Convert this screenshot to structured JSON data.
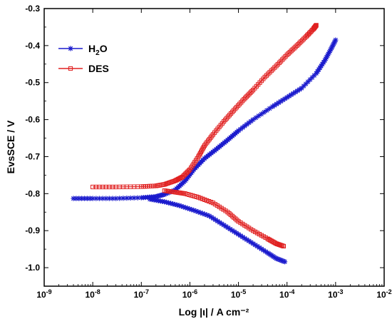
{
  "chart_data": {
    "type": "line",
    "xlabel": "Log |ι| / A cm⁻²",
    "ylabel": "EvsSCE / V",
    "x_scale": "log",
    "xlim": [
      1e-09,
      0.01
    ],
    "ylim": [
      -1.05,
      -0.3
    ],
    "x_ticks": [
      {
        "value": 1e-09,
        "base": "10",
        "exp": "-9"
      },
      {
        "value": 1e-08,
        "base": "10",
        "exp": "-8"
      },
      {
        "value": 1e-07,
        "base": "10",
        "exp": "-7"
      },
      {
        "value": 1e-06,
        "base": "10",
        "exp": "-6"
      },
      {
        "value": 1e-05,
        "base": "10",
        "exp": "-5"
      },
      {
        "value": 0.0001,
        "base": "10",
        "exp": "-4"
      },
      {
        "value": 0.001,
        "base": "10",
        "exp": "-3"
      },
      {
        "value": 0.01,
        "base": "10",
        "exp": "-2"
      }
    ],
    "y_ticks": [
      {
        "value": -0.3,
        "label": "-0.3"
      },
      {
        "value": -0.4,
        "label": "-0.4"
      },
      {
        "value": -0.5,
        "label": "-0.5"
      },
      {
        "value": -0.6,
        "label": "-0.6"
      },
      {
        "value": -0.7,
        "label": "-0.7"
      },
      {
        "value": -0.8,
        "label": "-0.8"
      },
      {
        "value": -0.9,
        "label": "-0.9"
      },
      {
        "value": -1.0,
        "label": "-1.0"
      }
    ],
    "legend": {
      "position": "top-left",
      "entries": [
        {
          "label_main": "H",
          "label_sub": "2",
          "label_tail": "O",
          "series": "H2O"
        },
        {
          "label_main": "DES",
          "label_sub": "",
          "label_tail": "",
          "series": "DES"
        }
      ]
    },
    "series": [
      {
        "name": "H2O",
        "color": "#1a1acd",
        "marker": "star",
        "branches": [
          {
            "points": [
              [
                4e-09,
                -0.813
              ],
              [
                1e-08,
                -0.813
              ],
              [
                3e-08,
                -0.813
              ],
              [
                1e-07,
                -0.811
              ],
              [
                2e-07,
                -0.808
              ],
              [
                3e-07,
                -0.802
              ],
              [
                5e-07,
                -0.79
              ],
              [
                8e-07,
                -0.765
              ],
              [
                1.2e-06,
                -0.735
              ],
              [
                2e-06,
                -0.705
              ],
              [
                3.5e-06,
                -0.68
              ],
              [
                6e-06,
                -0.655
              ],
              [
                1e-05,
                -0.63
              ],
              [
                2e-05,
                -0.6
              ],
              [
                5e-05,
                -0.565
              ],
              [
                0.0001,
                -0.54
              ],
              [
                0.0002,
                -0.515
              ],
              [
                0.0004,
                -0.475
              ],
              [
                0.0006,
                -0.44
              ],
              [
                0.0008,
                -0.41
              ],
              [
                0.001,
                -0.385
              ]
            ]
          },
          {
            "points": [
              [
                1.5e-07,
                -0.815
              ],
              [
                3e-07,
                -0.822
              ],
              [
                6e-07,
                -0.832
              ],
              [
                1.2e-06,
                -0.845
              ],
              [
                2.5e-06,
                -0.86
              ],
              [
                5e-06,
                -0.885
              ],
              [
                1e-05,
                -0.91
              ],
              [
                2e-05,
                -0.935
              ],
              [
                4e-05,
                -0.96
              ],
              [
                6e-05,
                -0.975
              ],
              [
                9e-05,
                -0.984
              ]
            ]
          }
        ]
      },
      {
        "name": "DES",
        "color": "#e02020",
        "marker": "square",
        "branches": [
          {
            "points": [
              [
                1e-08,
                -0.782
              ],
              [
                3e-08,
                -0.782
              ],
              [
                1e-07,
                -0.781
              ],
              [
                2e-07,
                -0.779
              ],
              [
                3e-07,
                -0.775
              ],
              [
                5e-07,
                -0.765
              ],
              [
                7e-07,
                -0.755
              ],
              [
                1e-06,
                -0.735
              ],
              [
                1.5e-06,
                -0.7
              ],
              [
                2e-06,
                -0.67
              ],
              [
                3e-06,
                -0.64
              ],
              [
                5e-06,
                -0.605
              ],
              [
                8e-06,
                -0.575
              ],
              [
                1.3e-05,
                -0.545
              ],
              [
                2e-05,
                -0.52
              ],
              [
                3.5e-05,
                -0.485
              ],
              [
                6e-05,
                -0.455
              ],
              [
                0.0001,
                -0.425
              ],
              [
                0.00016,
                -0.4
              ],
              [
                0.00025,
                -0.375
              ],
              [
                0.00035,
                -0.355
              ],
              [
                0.0004,
                -0.345
              ]
            ]
          },
          {
            "points": [
              [
                3e-07,
                -0.792
              ],
              [
                5e-07,
                -0.796
              ],
              [
                8e-07,
                -0.8
              ],
              [
                1.5e-06,
                -0.81
              ],
              [
                3e-06,
                -0.825
              ],
              [
                6e-06,
                -0.85
              ],
              [
                1e-05,
                -0.875
              ],
              [
                2e-05,
                -0.9
              ],
              [
                4e-05,
                -0.922
              ],
              [
                6e-05,
                -0.935
              ],
              [
                8.5e-05,
                -0.942
              ]
            ]
          }
        ]
      }
    ]
  }
}
